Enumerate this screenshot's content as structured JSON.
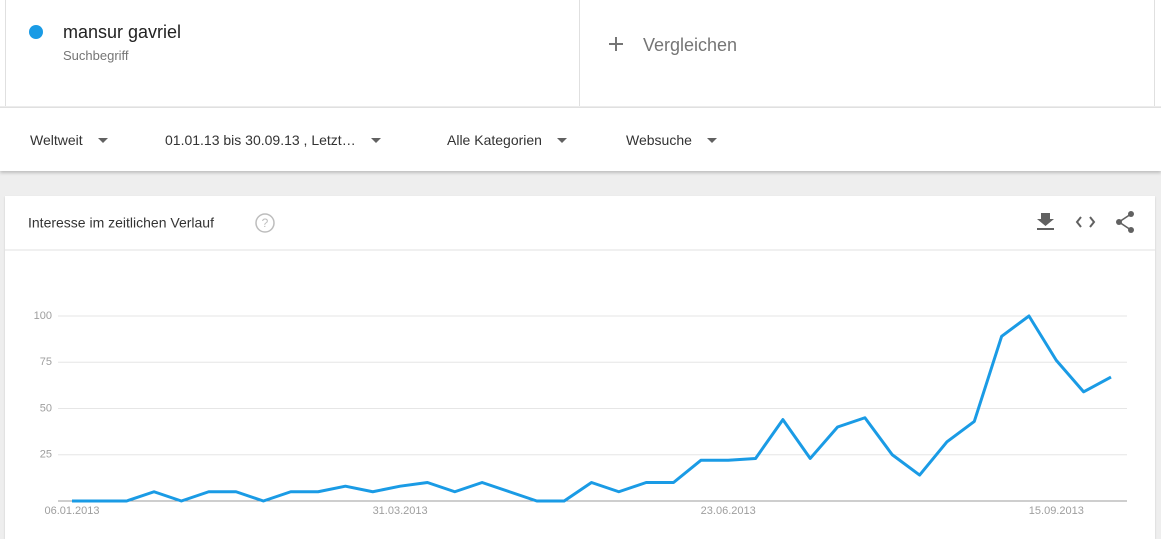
{
  "search": {
    "subtitle": "Suchbegriff",
    "compare": "Vergleichen"
  },
  "filters": [
    "Weltweit",
    "01.01.13 bis 30.09.13 , Letzt…",
    "Alle Kategorien",
    "Websuche"
  ],
  "chart_data": {
    "type": "line",
    "title": "Interesse im zeitlichen Verlauf",
    "categories": [
      "06.01.2013",
      null,
      null,
      null,
      null,
      null,
      null,
      null,
      null,
      null,
      null,
      null,
      "31.03.2013",
      null,
      null,
      null,
      null,
      null,
      null,
      null,
      null,
      null,
      null,
      null,
      "23.06.2013",
      null,
      null,
      null,
      null,
      null,
      null,
      null,
      null,
      null,
      null,
      null,
      "15.09.2013",
      null,
      null
    ],
    "series": [
      {
        "name": "mansur gavriel",
        "color": "#1a9be5",
        "values": [
          0,
          0,
          0,
          5,
          0,
          5,
          5,
          0,
          5,
          5,
          8,
          5,
          8,
          10,
          5,
          10,
          5,
          0,
          0,
          10,
          5,
          10,
          10,
          22,
          22,
          23,
          44,
          23,
          40,
          45,
          25,
          14,
          32,
          43,
          89,
          100,
          76,
          59,
          67
        ]
      }
    ],
    "ylim": [
      0,
      100
    ],
    "yticks": [
      25,
      50,
      75,
      100
    ],
    "grid": true
  }
}
